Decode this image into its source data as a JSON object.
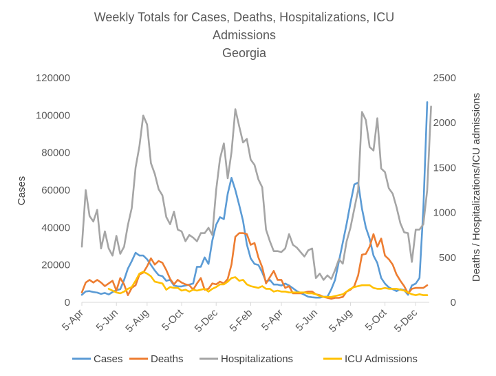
{
  "chart_data": {
    "type": "line",
    "title": "Weekly Totals for Cases, Deaths, Hospitalizations, ICU Admissions",
    "subtitle": "Georgia",
    "ylabel": "Cases",
    "y2label": "Deaths / Hospitalizations/ICU admissions",
    "ylim": [
      0,
      120000
    ],
    "y2lim": [
      0,
      2500
    ],
    "yticks": [
      "0",
      "20000",
      "40000",
      "60000",
      "80000",
      "100000",
      "120000"
    ],
    "y2ticks": [
      "0",
      "500",
      "1000",
      "1500",
      "2000",
      "2500"
    ],
    "xticks": [
      "5-Apr",
      "5-Jun",
      "5-Aug",
      "5-Oct",
      "5-Dec",
      "5-Feb",
      "5-Apr",
      "5-Jun",
      "5-Aug",
      "5-Oct",
      "5-Dec"
    ],
    "xtick_week_index": [
      0,
      9,
      17,
      26,
      35,
      44,
      52,
      61,
      70,
      79,
      87
    ],
    "grid": false,
    "legend_position": "bottom",
    "series": [
      {
        "name": "Cases",
        "axis": "left",
        "color": "#5B9BD5",
        "values": [
          4000,
          5800,
          6000,
          5500,
          5200,
          4500,
          5000,
          4200,
          5500,
          6500,
          7000,
          12000,
          18000,
          22000,
          26500,
          25000,
          25000,
          23000,
          20000,
          17000,
          14500,
          14000,
          11500,
          12000,
          9000,
          8500,
          8500,
          9000,
          9500,
          10000,
          19000,
          19000,
          24000,
          20500,
          33000,
          41500,
          45500,
          44500,
          58000,
          66500,
          60000,
          52000,
          43500,
          31000,
          23500,
          20500,
          20000,
          16000,
          11000,
          12000,
          9500,
          9500,
          9000,
          10000,
          9000,
          7500,
          6000,
          5000,
          4000,
          3000,
          2700,
          2500,
          2500,
          3000,
          3000,
          7000,
          12000,
          22000,
          32000,
          42000,
          53000,
          63000,
          64000,
          50000,
          40000,
          34000,
          25000,
          21000,
          13000,
          10000,
          8000,
          7000,
          6000,
          7000,
          6500,
          4000,
          9000,
          10000,
          13000,
          50000,
          107000
        ]
      },
      {
        "name": "Deaths",
        "axis": "right",
        "color": "#ED7D31",
        "values": [
          110,
          220,
          250,
          220,
          250,
          220,
          180,
          210,
          240,
          130,
          270,
          200,
          80,
          160,
          190,
          310,
          330,
          400,
          490,
          420,
          460,
          440,
          360,
          260,
          200,
          250,
          220,
          200,
          190,
          140,
          210,
          270,
          140,
          150,
          210,
          200,
          230,
          210,
          260,
          420,
          730,
          770,
          770,
          760,
          640,
          660,
          500,
          390,
          210,
          280,
          350,
          250,
          250,
          160,
          180,
          100,
          100,
          100,
          110,
          120,
          120,
          90,
          80,
          60,
          50,
          40,
          50,
          50,
          60,
          120,
          140,
          180,
          300,
          530,
          540,
          620,
          760,
          620,
          710,
          520,
          480,
          420,
          310,
          240,
          180,
          100,
          150,
          160,
          160,
          160,
          190
        ]
      },
      {
        "name": "Hospitalizations",
        "axis": "right",
        "color": "#A5A5A5",
        "values": [
          620,
          1250,
          960,
          900,
          1030,
          600,
          790,
          600,
          520,
          740,
          540,
          620,
          860,
          1050,
          1500,
          1740,
          2080,
          1980,
          1550,
          1430,
          1260,
          1190,
          950,
          870,
          1010,
          810,
          790,
          680,
          750,
          720,
          680,
          770,
          770,
          830,
          750,
          1250,
          1600,
          1770,
          1380,
          1670,
          2150,
          1960,
          1780,
          1820,
          1590,
          1530,
          1370,
          1280,
          810,
          680,
          570,
          570,
          560,
          600,
          760,
          640,
          610,
          560,
          510,
          580,
          600,
          270,
          320,
          250,
          300,
          260,
          360,
          480,
          430,
          680,
          830,
          1040,
          1250,
          2120,
          2030,
          1730,
          1690,
          2050,
          1490,
          1450,
          1270,
          1210,
          1060,
          880,
          780,
          770,
          450,
          810,
          810,
          870,
          1250,
          2180
        ]
      },
      {
        "name": "ICU Admissions",
        "axis": "right",
        "color": "#FFC000",
        "values": [
          null,
          null,
          null,
          null,
          null,
          null,
          null,
          150,
          130,
          110,
          100,
          120,
          150,
          170,
          240,
          320,
          340,
          320,
          290,
          230,
          220,
          210,
          140,
          170,
          160,
          160,
          130,
          140,
          120,
          140,
          130,
          140,
          150,
          120,
          150,
          170,
          200,
          200,
          230,
          270,
          280,
          240,
          250,
          200,
          180,
          170,
          160,
          180,
          150,
          150,
          120,
          130,
          120,
          120,
          110,
          110,
          110,
          110,
          110,
          100,
          100,
          90,
          70,
          60,
          60,
          60,
          70,
          80,
          90,
          120,
          150,
          170,
          180,
          190,
          190,
          190,
          160,
          150,
          150,
          160,
          150,
          150,
          150,
          140,
          130,
          110,
          90,
          80,
          90,
          80,
          80
        ]
      }
    ]
  }
}
